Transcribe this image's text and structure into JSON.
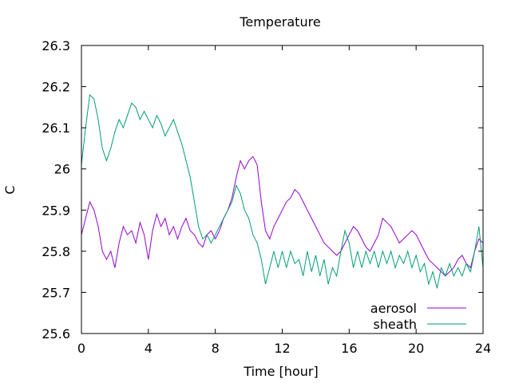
{
  "chart_data": {
    "type": "line",
    "title": "Temperature",
    "xlabel": "Time [hour]",
    "ylabel": "C",
    "xlim": [
      0,
      24
    ],
    "ylim": [
      25.6,
      26.3
    ],
    "xticks": [
      "0",
      "4",
      "8",
      "12",
      "16",
      "20",
      "24"
    ],
    "yticks": [
      "25.6",
      "25.7",
      "25.8",
      "25.9",
      "26",
      "26.1",
      "26.2",
      "26.3"
    ],
    "grid": false,
    "legend_position": "bottom-right",
    "series": [
      {
        "name": "aerosol",
        "color": "#9400d3",
        "points": [
          [
            0.0,
            25.84
          ],
          [
            0.25,
            25.88
          ],
          [
            0.5,
            25.92
          ],
          [
            0.75,
            25.9
          ],
          [
            1.0,
            25.86
          ],
          [
            1.25,
            25.8
          ],
          [
            1.5,
            25.78
          ],
          [
            1.75,
            25.8
          ],
          [
            2.0,
            25.76
          ],
          [
            2.25,
            25.82
          ],
          [
            2.5,
            25.86
          ],
          [
            2.75,
            25.84
          ],
          [
            3.0,
            25.85
          ],
          [
            3.25,
            25.82
          ],
          [
            3.5,
            25.87
          ],
          [
            3.75,
            25.84
          ],
          [
            4.0,
            25.78
          ],
          [
            4.25,
            25.85
          ],
          [
            4.5,
            25.89
          ],
          [
            4.75,
            25.86
          ],
          [
            5.0,
            25.88
          ],
          [
            5.25,
            25.84
          ],
          [
            5.5,
            25.86
          ],
          [
            5.75,
            25.83
          ],
          [
            6.0,
            25.86
          ],
          [
            6.25,
            25.88
          ],
          [
            6.5,
            25.85
          ],
          [
            6.75,
            25.84
          ],
          [
            7.0,
            25.82
          ],
          [
            7.25,
            25.81
          ],
          [
            7.5,
            25.84
          ],
          [
            7.75,
            25.85
          ],
          [
            8.0,
            25.83
          ],
          [
            8.25,
            25.85
          ],
          [
            8.5,
            25.88
          ],
          [
            8.75,
            25.9
          ],
          [
            9.0,
            25.93
          ],
          [
            9.25,
            25.98
          ],
          [
            9.5,
            26.02
          ],
          [
            9.75,
            26.0
          ],
          [
            10.0,
            26.02
          ],
          [
            10.25,
            26.03
          ],
          [
            10.5,
            26.01
          ],
          [
            10.75,
            25.92
          ],
          [
            11.0,
            25.85
          ],
          [
            11.25,
            25.83
          ],
          [
            11.5,
            25.86
          ],
          [
            11.75,
            25.88
          ],
          [
            12.0,
            25.9
          ],
          [
            12.25,
            25.92
          ],
          [
            12.5,
            25.93
          ],
          [
            12.75,
            25.95
          ],
          [
            13.0,
            25.94
          ],
          [
            13.25,
            25.92
          ],
          [
            13.5,
            25.9
          ],
          [
            13.75,
            25.88
          ],
          [
            14.0,
            25.86
          ],
          [
            14.25,
            25.84
          ],
          [
            14.5,
            25.82
          ],
          [
            14.75,
            25.81
          ],
          [
            15.0,
            25.8
          ],
          [
            15.25,
            25.79
          ],
          [
            15.5,
            25.8
          ],
          [
            15.75,
            25.82
          ],
          [
            16.0,
            25.84
          ],
          [
            16.25,
            25.86
          ],
          [
            16.5,
            25.85
          ],
          [
            16.75,
            25.83
          ],
          [
            17.0,
            25.81
          ],
          [
            17.25,
            25.8
          ],
          [
            17.5,
            25.82
          ],
          [
            17.75,
            25.84
          ],
          [
            18.0,
            25.88
          ],
          [
            18.25,
            25.87
          ],
          [
            18.5,
            25.86
          ],
          [
            18.75,
            25.84
          ],
          [
            19.0,
            25.82
          ],
          [
            19.25,
            25.83
          ],
          [
            19.5,
            25.84
          ],
          [
            19.75,
            25.85
          ],
          [
            20.0,
            25.84
          ],
          [
            20.25,
            25.82
          ],
          [
            20.5,
            25.8
          ],
          [
            20.75,
            25.78
          ],
          [
            21.0,
            25.77
          ],
          [
            21.25,
            25.76
          ],
          [
            21.5,
            25.75
          ],
          [
            21.75,
            25.74
          ],
          [
            22.0,
            25.75
          ],
          [
            22.25,
            25.76
          ],
          [
            22.5,
            25.78
          ],
          [
            22.75,
            25.79
          ],
          [
            23.0,
            25.77
          ],
          [
            23.25,
            25.76
          ],
          [
            23.5,
            25.8
          ],
          [
            23.75,
            25.83
          ],
          [
            24.0,
            25.82
          ]
        ]
      },
      {
        "name": "sheath",
        "color": "#009e73",
        "points": [
          [
            0.0,
            26.01
          ],
          [
            0.25,
            26.1
          ],
          [
            0.5,
            26.18
          ],
          [
            0.75,
            26.17
          ],
          [
            1.0,
            26.12
          ],
          [
            1.25,
            26.05
          ],
          [
            1.5,
            26.02
          ],
          [
            1.75,
            26.05
          ],
          [
            2.0,
            26.09
          ],
          [
            2.25,
            26.12
          ],
          [
            2.5,
            26.1
          ],
          [
            2.75,
            26.13
          ],
          [
            3.0,
            26.16
          ],
          [
            3.25,
            26.15
          ],
          [
            3.5,
            26.12
          ],
          [
            3.75,
            26.14
          ],
          [
            4.0,
            26.12
          ],
          [
            4.25,
            26.1
          ],
          [
            4.5,
            26.13
          ],
          [
            4.75,
            26.11
          ],
          [
            5.0,
            26.08
          ],
          [
            5.25,
            26.1
          ],
          [
            5.5,
            26.12
          ],
          [
            5.75,
            26.09
          ],
          [
            6.0,
            26.06
          ],
          [
            6.25,
            26.02
          ],
          [
            6.5,
            25.98
          ],
          [
            6.75,
            25.92
          ],
          [
            7.0,
            25.86
          ],
          [
            7.25,
            25.83
          ],
          [
            7.5,
            25.84
          ],
          [
            7.75,
            25.82
          ],
          [
            8.0,
            25.84
          ],
          [
            8.25,
            25.86
          ],
          [
            8.5,
            25.88
          ],
          [
            8.75,
            25.9
          ],
          [
            9.0,
            25.92
          ],
          [
            9.25,
            25.96
          ],
          [
            9.5,
            25.94
          ],
          [
            9.75,
            25.9
          ],
          [
            10.0,
            25.88
          ],
          [
            10.25,
            25.84
          ],
          [
            10.5,
            25.82
          ],
          [
            10.75,
            25.78
          ],
          [
            11.0,
            25.72
          ],
          [
            11.25,
            25.76
          ],
          [
            11.5,
            25.8
          ],
          [
            11.75,
            25.76
          ],
          [
            12.0,
            25.8
          ],
          [
            12.25,
            25.76
          ],
          [
            12.5,
            25.8
          ],
          [
            12.75,
            25.77
          ],
          [
            13.0,
            25.78
          ],
          [
            13.25,
            25.74
          ],
          [
            13.5,
            25.8
          ],
          [
            13.75,
            25.75
          ],
          [
            14.0,
            25.79
          ],
          [
            14.25,
            25.74
          ],
          [
            14.5,
            25.78
          ],
          [
            14.75,
            25.72
          ],
          [
            15.0,
            25.76
          ],
          [
            15.25,
            25.74
          ],
          [
            15.5,
            25.8
          ],
          [
            15.75,
            25.85
          ],
          [
            16.0,
            25.82
          ],
          [
            16.25,
            25.76
          ],
          [
            16.5,
            25.8
          ],
          [
            16.75,
            25.76
          ],
          [
            17.0,
            25.8
          ],
          [
            17.25,
            25.77
          ],
          [
            17.5,
            25.8
          ],
          [
            17.75,
            25.76
          ],
          [
            18.0,
            25.8
          ],
          [
            18.25,
            25.77
          ],
          [
            18.5,
            25.8
          ],
          [
            18.75,
            25.76
          ],
          [
            19.0,
            25.79
          ],
          [
            19.25,
            25.77
          ],
          [
            19.5,
            25.8
          ],
          [
            19.75,
            25.76
          ],
          [
            20.0,
            25.79
          ],
          [
            20.25,
            25.75
          ],
          [
            20.5,
            25.77
          ],
          [
            20.75,
            25.72
          ],
          [
            21.0,
            25.75
          ],
          [
            21.25,
            25.71
          ],
          [
            21.5,
            25.76
          ],
          [
            21.75,
            25.74
          ],
          [
            22.0,
            25.77
          ],
          [
            22.25,
            25.74
          ],
          [
            22.5,
            25.76
          ],
          [
            22.75,
            25.74
          ],
          [
            23.0,
            25.77
          ],
          [
            23.25,
            25.75
          ],
          [
            23.5,
            25.8
          ],
          [
            23.75,
            25.86
          ],
          [
            24.0,
            25.76
          ]
        ]
      }
    ]
  }
}
